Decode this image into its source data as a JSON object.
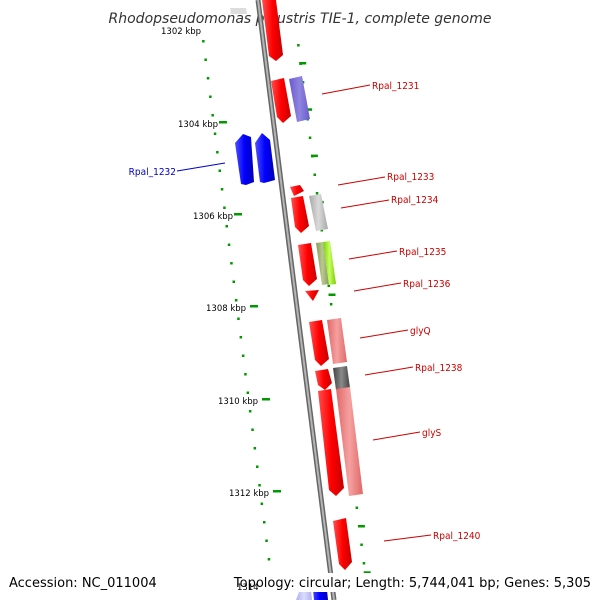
{
  "title": "Rhodopseudomonas palustris TIE-1, complete genome",
  "footer": {
    "accession": "Accession: NC_011004",
    "summary": "Topology: circular; Length: 5,744,041 bp; Genes: 5,305"
  },
  "colors": {
    "forward_gene": "#ff0000",
    "reverse_gene": "#0000ff",
    "label_red": "#cc0000",
    "label_blue": "#0000cc",
    "tick_green": "#009900",
    "backbone": "#888888"
  },
  "ruler_ticks": [
    {
      "label": "1302 kbp",
      "pos_kbp": 1302
    },
    {
      "label": "1304 kbp",
      "pos_kbp": 1304
    },
    {
      "label": "1306 kbp",
      "pos_kbp": 1306
    },
    {
      "label": "1308 kbp",
      "pos_kbp": 1308
    },
    {
      "label": "1310 kbp",
      "pos_kbp": 1310
    },
    {
      "label": "1312 kbp",
      "pos_kbp": 1312
    },
    {
      "label": "1314",
      "pos_kbp": 1314
    }
  ],
  "gene_labels": [
    {
      "text": "Rpal_1231",
      "strand": "forward"
    },
    {
      "text": "Rpal_1232",
      "strand": "reverse"
    },
    {
      "text": "Rpal_1233",
      "strand": "forward"
    },
    {
      "text": "Rpal_1234",
      "strand": "forward"
    },
    {
      "text": "Rpal_1235",
      "strand": "forward"
    },
    {
      "text": "Rpal_1236",
      "strand": "forward"
    },
    {
      "text": "glyQ",
      "strand": "forward"
    },
    {
      "text": "Rpal_1238",
      "strand": "forward"
    },
    {
      "text": "glyS",
      "strand": "forward"
    },
    {
      "text": "Rpal_1240",
      "strand": "forward"
    }
  ]
}
